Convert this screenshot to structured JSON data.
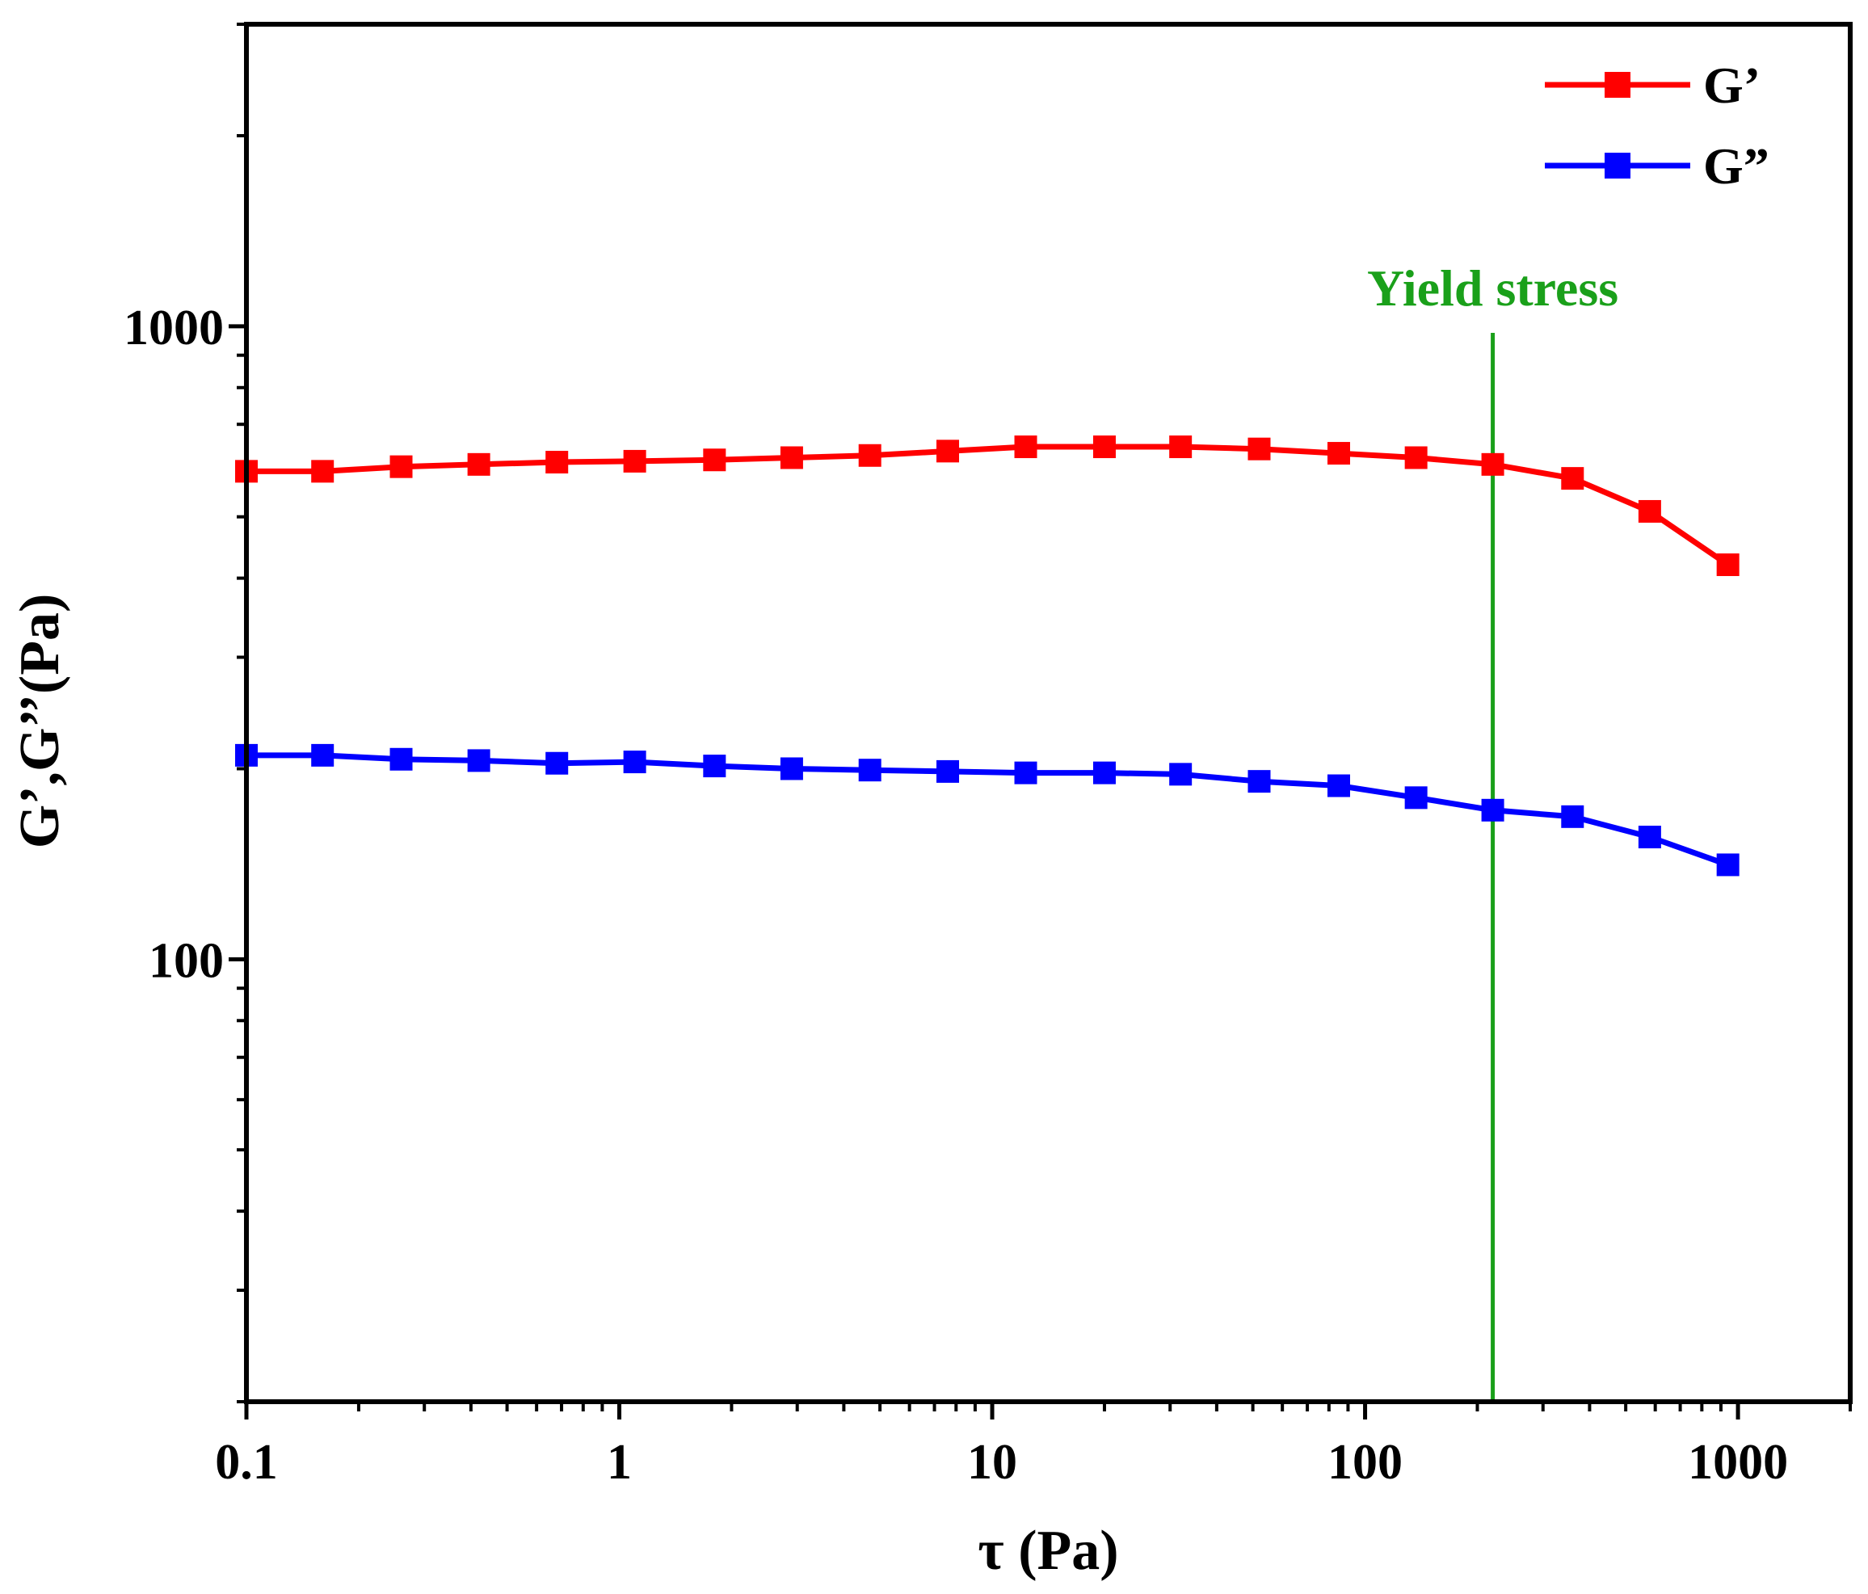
{
  "chart_data": {
    "type": "line",
    "title": "",
    "xlabel": "τ (Pa)",
    "ylabel": "G’,G’’(Pa)",
    "xscale": "log",
    "yscale": "log",
    "xlim": [
      0.1,
      2000
    ],
    "ylim": [
      20,
      3000
    ],
    "xticks": [
      {
        "value": 0.1,
        "label": "0.1"
      },
      {
        "value": 1,
        "label": "1"
      },
      {
        "value": 10,
        "label": "10"
      },
      {
        "value": 100,
        "label": "100"
      },
      {
        "value": 1000,
        "label": "1000"
      }
    ],
    "yticks": [
      {
        "value": 100,
        "label": "100"
      },
      {
        "value": 1000,
        "label": "1000"
      }
    ],
    "x": [
      0.1,
      0.16,
      0.26,
      0.42,
      0.68,
      1.1,
      1.8,
      2.9,
      4.7,
      7.6,
      12.3,
      20,
      32,
      52,
      85,
      137,
      220,
      360,
      580,
      940
    ],
    "series": [
      {
        "name": "G’",
        "color": "#ff0000",
        "marker": "square",
        "values": [
          590,
          590,
          600,
          605,
          610,
          612,
          615,
          620,
          625,
          635,
          645,
          645,
          645,
          640,
          630,
          620,
          605,
          575,
          510,
          420
        ]
      },
      {
        "name": "G”",
        "color": "#0000ff",
        "marker": "square",
        "values": [
          210,
          210,
          207,
          206,
          204,
          205,
          202,
          200,
          199,
          198,
          197,
          197,
          196,
          191,
          188,
          180,
          172,
          168,
          156,
          141
        ]
      }
    ],
    "annotations": [
      {
        "type": "vline",
        "x": 220,
        "color": "#1aa01a",
        "label": "Yield stress"
      }
    ],
    "legend": {
      "position": "top-right"
    },
    "grid": false
  }
}
